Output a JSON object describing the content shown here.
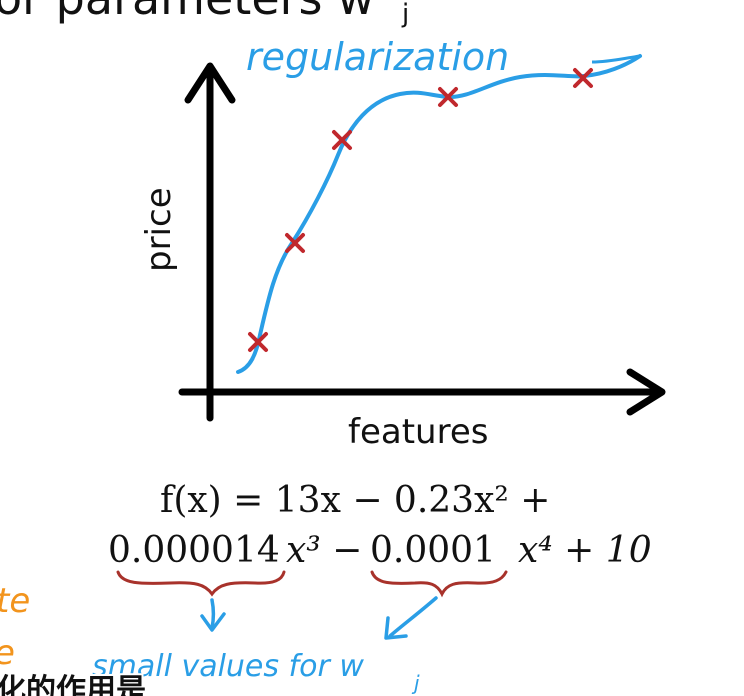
{
  "header": {
    "partial_title": "or parameters w",
    "subscript": "j"
  },
  "graph": {
    "annotation": "regularization",
    "y_axis_label": "price",
    "x_axis_label": "features",
    "curve_color": "#2a9ee6",
    "marker_color": "#c0282d"
  },
  "equation": {
    "line1": "f(x) = 13x − 0.23x² +",
    "line2_coef3": "0.000014",
    "line2_x3": "x³ −",
    "line2_coef4": "0.0001",
    "line2_x4": "x⁴ + 10",
    "underline_color": "#a8322b"
  },
  "notes": {
    "small_values": "small values for w",
    "subscript": "j",
    "note_color": "#2a9ee6",
    "left_fragment_1": "te",
    "left_fragment_2": "e",
    "left_fragment_color": "#f2941d",
    "subtitle_fragment": "化的作用是"
  }
}
